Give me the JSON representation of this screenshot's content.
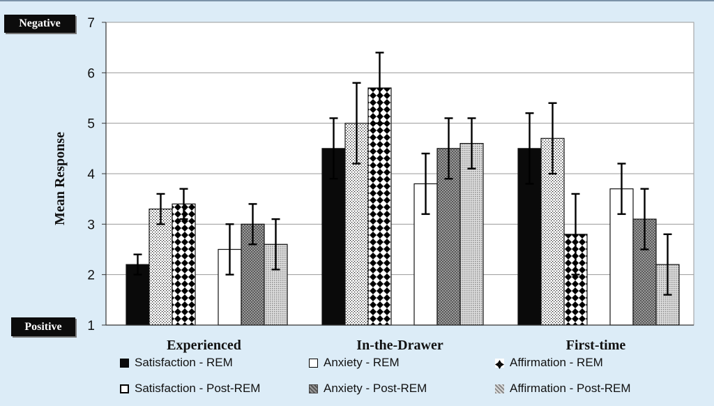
{
  "labels": {
    "negative": "Negative",
    "positive": "Positive"
  },
  "chart_data": {
    "type": "bar",
    "title": "",
    "xlabel": "",
    "ylabel": "Mean Response",
    "ylim": [
      1,
      7
    ],
    "yticks": [
      "1",
      "2",
      "3",
      "4",
      "5",
      "6",
      "7"
    ],
    "grid": true,
    "legend_position": "bottom",
    "categories": [
      "Experienced",
      "In-the-Drawer",
      "First-time"
    ],
    "series": [
      {
        "name": "Satisfaction - REM",
        "pattern": "solid-black",
        "color": "#0a0a0a",
        "values": [
          2.2,
          4.5,
          4.5
        ],
        "errors": [
          0.2,
          0.6,
          0.7
        ]
      },
      {
        "name": "Anxiety - REM",
        "pattern": "fine-dots",
        "color": "#ffffff",
        "values": [
          3.3,
          5.0,
          4.7
        ],
        "errors": [
          0.3,
          0.8,
          0.7
        ]
      },
      {
        "name": "Affirmation - REM",
        "pattern": "diamond-checker",
        "color": "#000000",
        "values": [
          3.4,
          5.7,
          2.8
        ],
        "errors": [
          0.3,
          0.7,
          0.8
        ]
      },
      {
        "name": "Satisfaction - Post-REM",
        "pattern": "hollow-white",
        "color": "#ffffff",
        "values": [
          2.5,
          3.8,
          3.7
        ],
        "errors": [
          0.5,
          0.6,
          0.5
        ]
      },
      {
        "name": "Anxiety - Post-REM",
        "pattern": "dark-gray-dots",
        "color": "#6a6a6a",
        "values": [
          3.0,
          4.5,
          3.1
        ],
        "errors": [
          0.4,
          0.6,
          0.6
        ]
      },
      {
        "name": "Affirmation - Post-REM",
        "pattern": "light-gray-dots",
        "color": "#bdbdbd",
        "values": [
          2.6,
          4.6,
          2.2
        ],
        "errors": [
          0.5,
          0.5,
          0.6
        ]
      }
    ]
  }
}
